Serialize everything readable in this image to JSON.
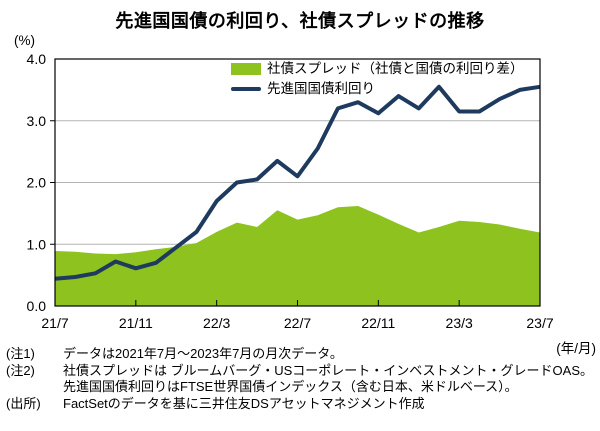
{
  "title": "先進国国債の利回り、社債スプレッドの推移",
  "y_axis_unit": "(%)",
  "x_axis_unit": "(年/月)",
  "legend": {
    "spread_label": "社債スプレッド（社債と国債の利回り差）",
    "yield_label": "先進国国債利回り"
  },
  "notes": [
    {
      "label": "(注1)",
      "text": "データは2021年7月～2023年7月の月次データ。"
    },
    {
      "label": "(注2)",
      "text": "社債スプレッドは ブルームバーグ・USコーポレート・インベストメント・グレードOAS。"
    },
    {
      "label": "",
      "text": "先進国国債利回りはFTSE世界国債インデックス（含む日本、米ドルベース）。"
    },
    {
      "label": "(出所)",
      "text": "FactSetのデータを基に三井住友DSアセットマネジメント作成"
    }
  ],
  "colors": {
    "spread_area": "#8dc21f",
    "yield_line": "#1f3a5f",
    "gridline": "#b3b3b3",
    "axis": "#000000"
  },
  "chart_data": {
    "type": "area",
    "title": "先進国国債の利回り、社債スプレッドの推移",
    "xlabel": "(年/月)",
    "ylabel": "(%)",
    "x": [
      "21/7",
      "21/8",
      "21/9",
      "21/10",
      "21/11",
      "21/12",
      "22/1",
      "22/2",
      "22/3",
      "22/4",
      "22/5",
      "22/6",
      "22/7",
      "22/8",
      "22/9",
      "22/10",
      "22/11",
      "22/12",
      "23/1",
      "23/2",
      "23/3",
      "23/4",
      "23/5",
      "23/6",
      "23/7"
    ],
    "series": [
      {
        "name": "社債スプレッド（社債と国債の利回り差）",
        "kind": "area",
        "color": "#8dc21f",
        "values": [
          0.89,
          0.88,
          0.85,
          0.84,
          0.87,
          0.92,
          0.96,
          1.02,
          1.2,
          1.35,
          1.28,
          1.55,
          1.4,
          1.47,
          1.6,
          1.62,
          1.48,
          1.33,
          1.19,
          1.28,
          1.38,
          1.36,
          1.32,
          1.25,
          1.19
        ]
      },
      {
        "name": "先進国国債利回り",
        "kind": "line",
        "color": "#1f3a5f",
        "values": [
          0.44,
          0.47,
          0.53,
          0.72,
          0.61,
          0.7,
          0.95,
          1.2,
          1.7,
          2.0,
          2.05,
          2.35,
          2.1,
          2.55,
          3.2,
          3.3,
          3.12,
          3.4,
          3.2,
          3.55,
          3.15,
          3.15,
          3.35,
          3.5,
          3.55
        ]
      }
    ],
    "ylim": [
      0,
      4
    ],
    "y_tick_labels": [
      "0.0",
      "1.0",
      "2.0",
      "3.0",
      "4.0"
    ],
    "x_tick_indices": [
      0,
      4,
      8,
      12,
      16,
      20,
      24
    ],
    "x_tick_labels": [
      "21/7",
      "21/11",
      "22/3",
      "22/7",
      "22/11",
      "23/3",
      "23/7"
    ],
    "grid": "horizontal",
    "legend_position": "top-inside"
  }
}
